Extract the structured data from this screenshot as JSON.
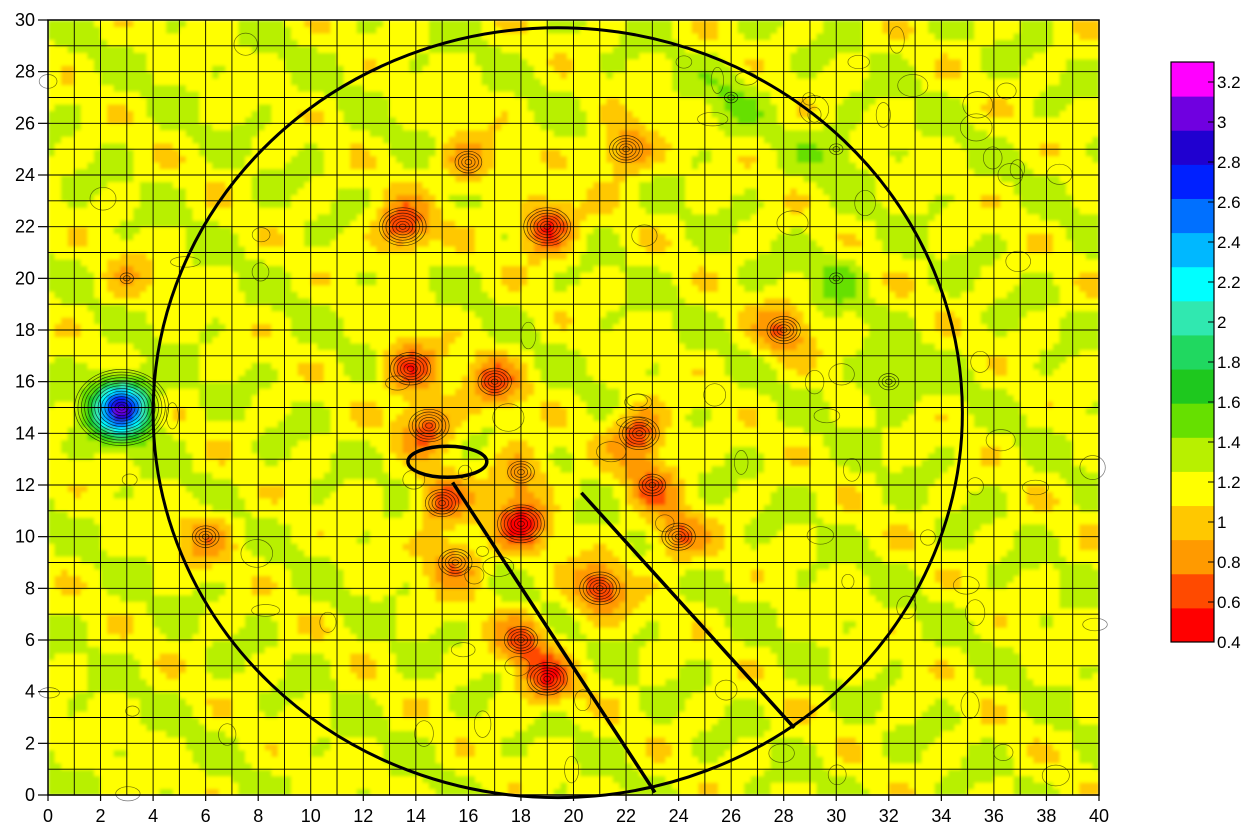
{
  "chart_data": {
    "type": "heatmap",
    "title": "",
    "xlabel": "",
    "ylabel": "",
    "xlim": [
      0,
      40
    ],
    "ylim": [
      0,
      30
    ],
    "x_ticks": [
      0,
      2,
      4,
      6,
      8,
      10,
      12,
      14,
      16,
      18,
      20,
      22,
      24,
      26,
      28,
      30,
      32,
      34,
      36,
      38,
      40
    ],
    "y_ticks": [
      0,
      2,
      4,
      6,
      8,
      10,
      12,
      14,
      16,
      18,
      20,
      22,
      24,
      26,
      28,
      30
    ],
    "grid": true,
    "legend": "right",
    "colorbar": {
      "ticks": [
        0.4,
        0.6,
        0.8,
        1,
        1.2,
        1.4,
        1.6,
        1.8,
        2,
        2.2,
        2.4,
        2.6,
        2.8,
        3,
        3.2
      ],
      "range": [
        0.4,
        3.3
      ],
      "colors": [
        "#ff0000",
        "#ff4a00",
        "#ff9a00",
        "#ffc800",
        "#ffff00",
        "#b8f000",
        "#66e000",
        "#1ec81e",
        "#20d860",
        "#30e8b0",
        "#00ffff",
        "#00b8ff",
        "#0070ff",
        "#0020ff",
        "#2000d0",
        "#7000e0",
        "#ff00ff"
      ]
    },
    "field": {
      "background": 1.22,
      "features": [
        {
          "x": 2.8,
          "y": 15,
          "value": 2.9
        },
        {
          "x": 13.5,
          "y": 22,
          "value": 0.55
        },
        {
          "x": 13.8,
          "y": 16.5,
          "value": 0.6
        },
        {
          "x": 14.5,
          "y": 14.3,
          "value": 0.65
        },
        {
          "x": 15,
          "y": 11.3,
          "value": 0.7
        },
        {
          "x": 15.5,
          "y": 9,
          "value": 0.75
        },
        {
          "x": 18,
          "y": 10.5,
          "value": 0.55
        },
        {
          "x": 18,
          "y": 12.5,
          "value": 0.8
        },
        {
          "x": 17,
          "y": 16,
          "value": 0.7
        },
        {
          "x": 19,
          "y": 22,
          "value": 0.5
        },
        {
          "x": 18,
          "y": 6,
          "value": 0.75
        },
        {
          "x": 19,
          "y": 4.5,
          "value": 0.65
        },
        {
          "x": 21,
          "y": 8,
          "value": 0.6
        },
        {
          "x": 22.5,
          "y": 14,
          "value": 0.6
        },
        {
          "x": 23,
          "y": 12,
          "value": 0.8
        },
        {
          "x": 22,
          "y": 25,
          "value": 0.7
        },
        {
          "x": 24,
          "y": 10,
          "value": 0.75
        },
        {
          "x": 28,
          "y": 18,
          "value": 0.75
        },
        {
          "x": 16,
          "y": 24.5,
          "value": 0.8
        },
        {
          "x": 30,
          "y": 20,
          "value": 1.45
        },
        {
          "x": 32,
          "y": 16,
          "value": 1.5
        },
        {
          "x": 30,
          "y": 25,
          "value": 1.4
        },
        {
          "x": 26,
          "y": 27,
          "value": 1.4
        },
        {
          "x": 3,
          "y": 20,
          "value": 1.0
        },
        {
          "x": 6,
          "y": 10,
          "value": 0.85
        }
      ]
    },
    "overlays": {
      "circle": {
        "cx": 19.4,
        "cy": 14.8,
        "rx": 15.4,
        "ry": 14.9
      },
      "ellipse": {
        "cx": 15.2,
        "cy": 12.9,
        "rx": 1.5,
        "ry": 0.6
      },
      "lines": [
        {
          "x1": 15.4,
          "y1": 12.1,
          "x2": 23.1,
          "y2": 0.1
        },
        {
          "x1": 20.3,
          "y1": 11.7,
          "x2": 28.4,
          "y2": 2.6
        }
      ]
    }
  }
}
